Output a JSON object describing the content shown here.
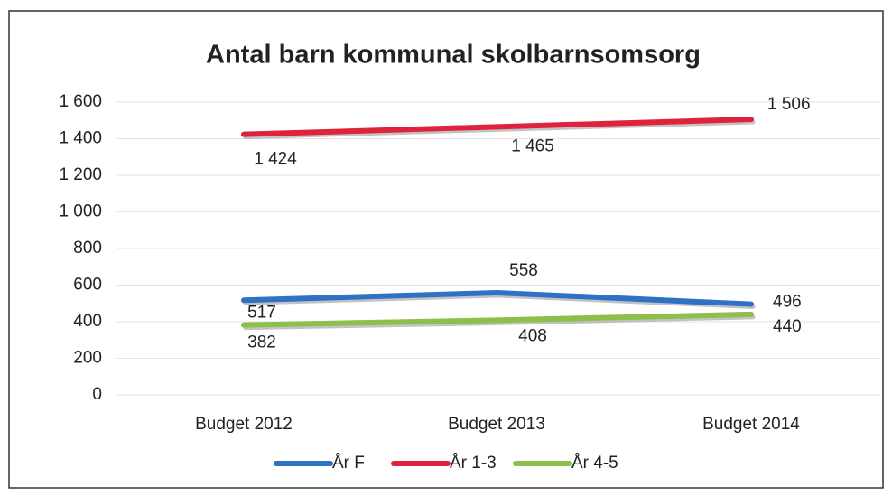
{
  "chart_data": {
    "type": "line",
    "title": "Antal barn kommunal skolbarnsomsorg",
    "categories": [
      "Budget 2012",
      "Budget 2013",
      "Budget 2014"
    ],
    "series": [
      {
        "name": "År F",
        "color": "#2f72c4",
        "values": [
          517,
          558,
          496
        ]
      },
      {
        "name": "År 1-3",
        "color": "#e0233d",
        "values": [
          1424,
          1465,
          1506
        ],
        "value_labels": [
          "1 424",
          "1 465",
          "1 506"
        ]
      },
      {
        "name": "År 4-5",
        "color": "#8cc04b",
        "values": [
          382,
          408,
          440
        ]
      }
    ],
    "ylim": [
      0,
      1600
    ],
    "yticks": [
      0,
      200,
      400,
      600,
      800,
      {
        "value": 1000,
        "label": "1 000"
      },
      {
        "value": 1200,
        "label": "1 200"
      },
      {
        "value": 1400,
        "label": "1 400"
      },
      {
        "value": 1600,
        "label": "1 600"
      }
    ],
    "grid": true,
    "legend": "bottom"
  }
}
